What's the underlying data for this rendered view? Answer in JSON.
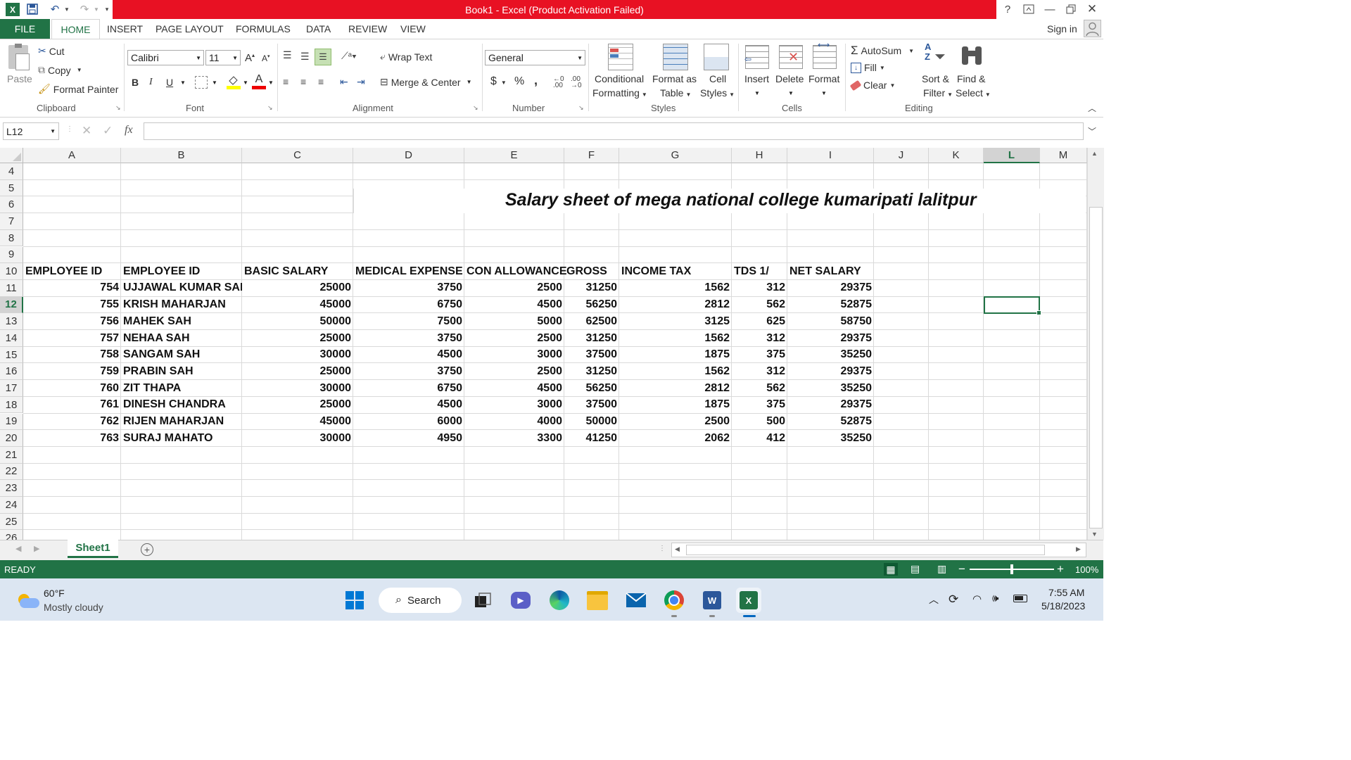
{
  "window": {
    "title": "Book1 -  Excel (Product Activation Failed)",
    "sign_in": "Sign in",
    "help": "?"
  },
  "tabs": [
    "FILE",
    "HOME",
    "INSERT",
    "PAGE LAYOUT",
    "FORMULAS",
    "DATA",
    "REVIEW",
    "VIEW"
  ],
  "ribbon": {
    "clipboard": {
      "paste": "Paste",
      "cut": "Cut",
      "copy": "Copy",
      "format_painter": "Format Painter",
      "group": "Clipboard"
    },
    "font": {
      "name": "Calibri",
      "size": "11",
      "bold": "B",
      "italic": "I",
      "underline": "U",
      "group": "Font"
    },
    "alignment": {
      "wrap": "Wrap Text",
      "merge": "Merge & Center",
      "group": "Alignment"
    },
    "number": {
      "format": "General",
      "currency": "$",
      "percent": "%",
      "comma": ",",
      "group": "Number"
    },
    "styles": {
      "conditional1": "Conditional",
      "conditional2": "Formatting",
      "format_table1": "Format as",
      "format_table2": "Table",
      "cell_styles1": "Cell",
      "cell_styles2": "Styles",
      "group": "Styles"
    },
    "cells": {
      "insert": "Insert",
      "delete": "Delete",
      "format": "Format",
      "group": "Cells"
    },
    "editing": {
      "autosum": "AutoSum",
      "fill": "Fill",
      "clear": "Clear",
      "sort1": "Sort &",
      "sort2": "Filter",
      "find1": "Find &",
      "find2": "Select",
      "group": "Editing"
    }
  },
  "formula_bar": {
    "name_box": "L12",
    "fx": "fx",
    "value": ""
  },
  "columns": [
    "A",
    "B",
    "C",
    "D",
    "E",
    "F",
    "G",
    "H",
    "I",
    "J",
    "K",
    "L",
    "M"
  ],
  "rows": [
    "4",
    "5",
    "6",
    "7",
    "8",
    "9",
    "10",
    "11",
    "12",
    "13",
    "14",
    "15",
    "16",
    "17",
    "18",
    "19",
    "20",
    "21",
    "22",
    "23",
    "24",
    "25",
    "26"
  ],
  "sheet_title": "Salary sheet of mega national college kumaripati lalitpur",
  "table": {
    "headers": [
      "EMPLOYEE ID",
      "EMPLOYEE ID",
      "BASIC SALARY",
      "MEDICAL EXPENSE",
      "CON ALLOWANCE",
      "GROSS",
      "INCOME TAX",
      "TDS 1/",
      "NET SALARY"
    ],
    "rows": [
      [
        "754",
        "UJJAWAL KUMAR SAH",
        "25000",
        "3750",
        "2500",
        "31250",
        "1562",
        "312",
        "29375"
      ],
      [
        "755",
        "KRISH MAHARJAN",
        "45000",
        "6750",
        "4500",
        "56250",
        "2812",
        "562",
        "52875"
      ],
      [
        "756",
        "MAHEK SAH",
        "50000",
        "7500",
        "5000",
        "62500",
        "3125",
        "625",
        "58750"
      ],
      [
        "757",
        "NEHAA SAH",
        "25000",
        "3750",
        "2500",
        "31250",
        "1562",
        "312",
        "29375"
      ],
      [
        "758",
        "SANGAM SAH",
        "30000",
        "4500",
        "3000",
        "37500",
        "1875",
        "375",
        "35250"
      ],
      [
        "759",
        "PRABIN SAH",
        "25000",
        "3750",
        "2500",
        "31250",
        "1562",
        "312",
        "29375"
      ],
      [
        "760",
        "ZIT THAPA",
        "30000",
        "6750",
        "4500",
        "56250",
        "2812",
        "562",
        "35250"
      ],
      [
        "761",
        "DINESH CHANDRA",
        "25000",
        "4500",
        "3000",
        "37500",
        "1875",
        "375",
        "29375"
      ],
      [
        "762",
        "RIJEN MAHARJAN",
        "45000",
        "6000",
        "4000",
        "50000",
        "2500",
        "500",
        "52875"
      ],
      [
        "763",
        "SURAJ MAHATO",
        "30000",
        "4950",
        "3300",
        "41250",
        "2062",
        "412",
        "35250"
      ]
    ]
  },
  "sheet_tab": "Sheet1",
  "status": {
    "state": "READY",
    "zoom": "100%"
  },
  "taskbar": {
    "weather_temp": "60°F",
    "weather_desc": "Mostly cloudy",
    "search": "Search",
    "time": "7:55 AM",
    "date": "5/18/2023"
  },
  "colors": {
    "excel_green": "#217346",
    "title_red": "#e81123"
  }
}
